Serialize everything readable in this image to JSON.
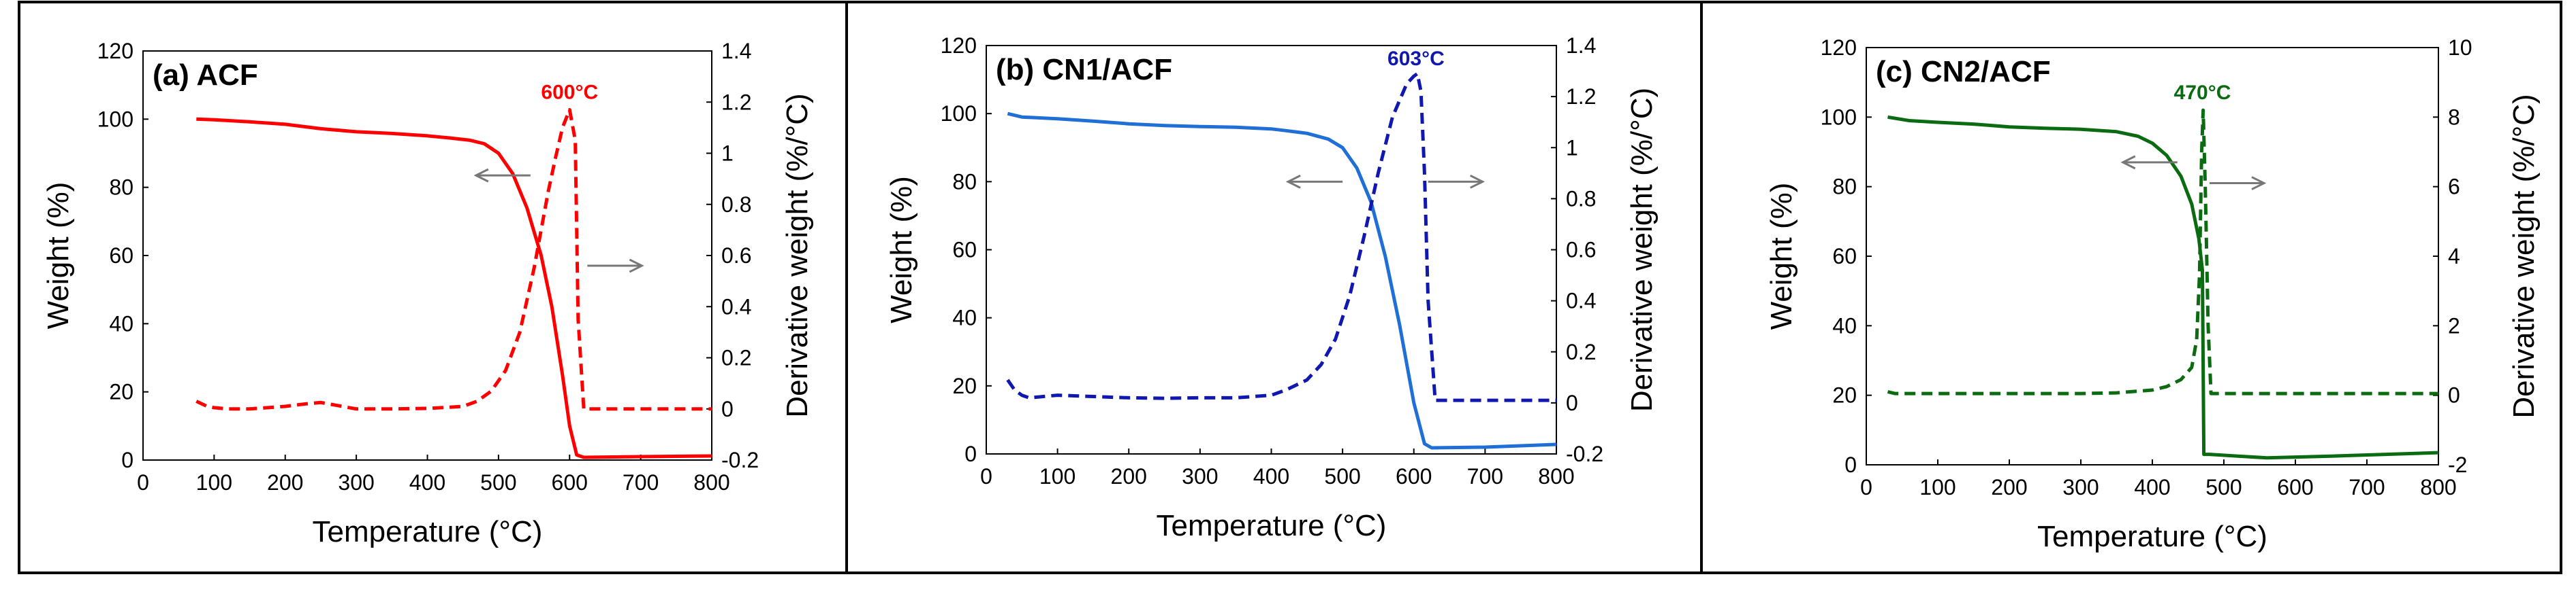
{
  "chart_data": [
    {
      "type": "line",
      "title": "(a) ACF",
      "xlabel": "Temperature (°C)",
      "ylabel": "Weight (%)",
      "y2label": "Derivative weight (%/°C)",
      "xlim": [
        0,
        800
      ],
      "ylim": [
        0,
        120
      ],
      "y2lim": [
        -0.2,
        1.4
      ],
      "xticks": [
        "0",
        "100",
        "200",
        "300",
        "400",
        "500",
        "600",
        "700",
        "800"
      ],
      "yticks": [
        "0",
        "20",
        "40",
        "60",
        "80",
        "100",
        "120"
      ],
      "y2ticks": [
        "-0.2",
        "0",
        "0.2",
        "0.4",
        "0.6",
        "0.8",
        "1",
        "1.2",
        "1.4"
      ],
      "color": "#ff0000",
      "peak_label": "600°C",
      "peak": {
        "x": 600,
        "y2": 1.17
      },
      "series": [
        {
          "name": "Weight",
          "axis": "left",
          "style": "solid",
          "x": [
            75,
            100,
            150,
            200,
            250,
            300,
            350,
            400,
            430,
            460,
            480,
            500,
            520,
            540,
            560,
            575,
            590,
            600,
            610,
            620,
            700,
            800
          ],
          "y": [
            100,
            99.8,
            99.2,
            98.5,
            97.2,
            96.3,
            95.8,
            95.1,
            94.5,
            93.8,
            92.8,
            90,
            84,
            74,
            60,
            45,
            25,
            10,
            1.5,
            0.8,
            1,
            1.2
          ]
        },
        {
          "name": "Derivative weight",
          "axis": "right",
          "style": "dashed",
          "x": [
            75,
            90,
            100,
            120,
            150,
            200,
            230,
            250,
            270,
            300,
            350,
            400,
            420,
            450,
            470,
            490,
            510,
            530,
            550,
            570,
            580,
            590,
            600,
            608,
            612,
            620,
            700,
            800
          ],
          "y": [
            0.03,
            0.01,
            0.005,
            0.0,
            0.0,
            0.01,
            0.02,
            0.025,
            0.015,
            0.0,
            0.0,
            0.002,
            0.005,
            0.01,
            0.03,
            0.07,
            0.15,
            0.3,
            0.55,
            0.85,
            0.98,
            1.1,
            1.17,
            1.05,
            0.35,
            0.0,
            0.0,
            0.0
          ]
        }
      ],
      "annotations": [
        {
          "text": "arrow-left",
          "x": 545,
          "y": 83.5
        },
        {
          "text": "arrow-right",
          "x": 625,
          "y2": 0.56
        }
      ]
    },
    {
      "type": "line",
      "title": "(b) CN1/ACF",
      "xlabel": "Temperature (°C)",
      "ylabel": "Weight (%)",
      "y2label": "Derivative weight (%/°C)",
      "xlim": [
        0,
        800
      ],
      "ylim": [
        0,
        120
      ],
      "y2lim": [
        -0.2,
        1.4
      ],
      "xticks": [
        "0",
        "100",
        "200",
        "300",
        "400",
        "500",
        "600",
        "700",
        "800"
      ],
      "yticks": [
        "0",
        "20",
        "40",
        "60",
        "80",
        "100",
        "120"
      ],
      "y2ticks": [
        "-0.2",
        "0",
        "0.2",
        "0.4",
        "0.6",
        "0.8",
        "1",
        "1.2",
        "1.4"
      ],
      "color_weight": "#1f6fd6",
      "color_derivative": "#1018b0",
      "peak_label": "603°C",
      "peak": {
        "x": 603,
        "y2": 1.28
      },
      "series": [
        {
          "name": "Weight",
          "axis": "left",
          "style": "solid",
          "x": [
            30,
            50,
            100,
            150,
            200,
            250,
            300,
            350,
            400,
            420,
            450,
            480,
            500,
            520,
            540,
            560,
            580,
            600,
            615,
            625,
            700,
            800
          ],
          "y": [
            100,
            99,
            98.5,
            97.8,
            97,
            96.5,
            96.2,
            96,
            95.5,
            95,
            94.2,
            92.5,
            90,
            84,
            74,
            58,
            38,
            15,
            3,
            1.8,
            2,
            2.8
          ]
        },
        {
          "name": "Derivative weight",
          "axis": "right",
          "style": "dashed",
          "x": [
            30,
            40,
            50,
            60,
            80,
            100,
            150,
            200,
            250,
            300,
            350,
            400,
            420,
            450,
            470,
            490,
            510,
            530,
            550,
            570,
            590,
            600,
            605,
            610,
            615,
            620,
            630,
            700,
            800
          ],
          "y": [
            0.09,
            0.05,
            0.03,
            0.02,
            0.025,
            0.03,
            0.025,
            0.02,
            0.018,
            0.02,
            0.02,
            0.03,
            0.05,
            0.09,
            0.15,
            0.25,
            0.42,
            0.65,
            0.9,
            1.12,
            1.25,
            1.28,
            1.29,
            1.22,
            0.9,
            0.4,
            0.01,
            0.01,
            0.01
          ]
        }
      ],
      "annotations": [
        {
          "text": "arrow-left",
          "x": 500,
          "y": 80
        },
        {
          "text": "arrow-right",
          "x": 620,
          "y": 80
        }
      ]
    },
    {
      "type": "line",
      "title": "(c) CN2/ACF",
      "xlabel": "Temperature (°C)",
      "ylabel": "Weight (%)",
      "y2label": "Derivative weight (%/°C)",
      "xlim": [
        0,
        800
      ],
      "ylim": [
        0,
        120
      ],
      "y2lim": [
        -2,
        10
      ],
      "xticks": [
        "0",
        "100",
        "200",
        "300",
        "400",
        "500",
        "600",
        "700",
        "800"
      ],
      "yticks": [
        "0",
        "20",
        "40",
        "60",
        "80",
        "100",
        "120"
      ],
      "y2ticks": [
        "-2",
        "0",
        "2",
        "4",
        "6",
        "8",
        "10"
      ],
      "color": "#0b6b10",
      "peak_label": "470°C",
      "peak": {
        "x": 470,
        "y2": 8.2
      },
      "series": [
        {
          "name": "Weight",
          "axis": "left",
          "style": "solid",
          "x": [
            30,
            60,
            100,
            150,
            200,
            250,
            300,
            350,
            380,
            400,
            420,
            440,
            455,
            465,
            470,
            472,
            480,
            520,
            560,
            650,
            800
          ],
          "y": [
            100,
            99,
            98.5,
            98,
            97.2,
            96.8,
            96.5,
            95.8,
            94.5,
            92.5,
            89,
            83,
            75,
            65,
            56,
            3,
            3,
            2.5,
            2,
            2.5,
            3.5
          ]
        },
        {
          "name": "Derivative weight",
          "axis": "right",
          "style": "dashed",
          "x": [
            30,
            40,
            100,
            200,
            300,
            350,
            400,
            420,
            440,
            455,
            462,
            466,
            469,
            471,
            474,
            478,
            482,
            500,
            600,
            800
          ],
          "y": [
            0.1,
            0.05,
            0.05,
            0.05,
            0.05,
            0.07,
            0.15,
            0.25,
            0.45,
            0.8,
            1.6,
            3.5,
            7,
            8.2,
            6,
            2,
            0.05,
            0.05,
            0.05,
            0.05
          ]
        }
      ],
      "annotations": [
        {
          "text": "arrow-left",
          "x": 435,
          "y": 87
        },
        {
          "text": "arrow-right",
          "x": 480,
          "y": 81
        }
      ]
    }
  ]
}
